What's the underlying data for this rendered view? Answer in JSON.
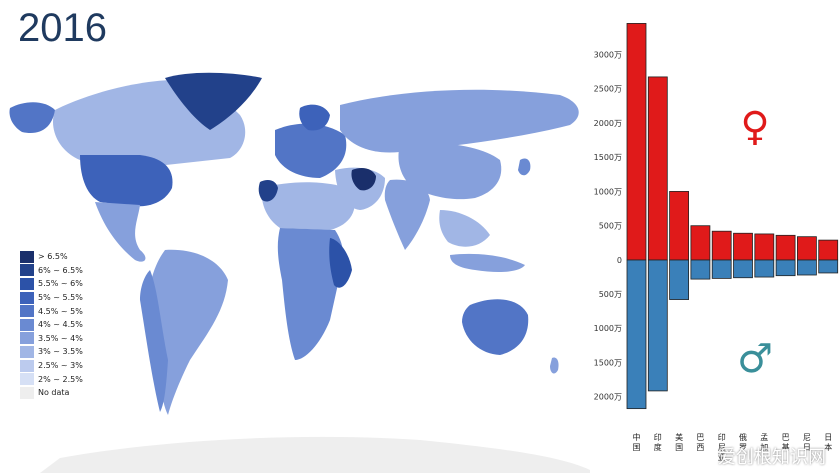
{
  "year_title": "2016",
  "legend": [
    {
      "label": "> 6.5%",
      "color": "#1a2f6b"
    },
    {
      "label": "6% ~ 6.5%",
      "color": "#22418a"
    },
    {
      "label": "5.5% ~ 6%",
      "color": "#2c52a8"
    },
    {
      "label": "5% ~ 5.5%",
      "color": "#3d62ba"
    },
    {
      "label": "4.5% ~ 5%",
      "color": "#5275c6"
    },
    {
      "label": "4% ~ 4.5%",
      "color": "#6a8ad2"
    },
    {
      "label": "3.5% ~ 4%",
      "color": "#86a0dc"
    },
    {
      "label": "3% ~ 3.5%",
      "color": "#a1b6e5"
    },
    {
      "label": "2.5% ~ 3%",
      "color": "#bccbee"
    },
    {
      "label": "2% ~ 2.5%",
      "color": "#d6e0f5"
    },
    {
      "label": "No data",
      "color": "#eeeeee"
    }
  ],
  "chart_data": {
    "type": "bar",
    "categories": [
      "中国",
      "印度",
      "美国",
      "巴西",
      "印尼亚",
      "俄罗",
      "孟加",
      "巴基",
      "尼日",
      "日本"
    ],
    "series": [
      {
        "name": "♀",
        "color": "#e01a1a",
        "values": [
          3450,
          2670,
          1000,
          500,
          420,
          390,
          380,
          360,
          340,
          290
        ]
      },
      {
        "name": "♂",
        "color": "#3a80b9",
        "values": [
          2180,
          1920,
          580,
          280,
          270,
          260,
          250,
          230,
          220,
          190
        ]
      }
    ],
    "yticks_top": [
      "3000万",
      "2500万",
      "2000万",
      "1500万",
      "1000万",
      "500万",
      "0"
    ],
    "yticks_bottom": [
      "500万",
      "1000万",
      "1500万",
      "2000万"
    ],
    "ylim_top": [
      0,
      3500
    ],
    "ylim_bottom": [
      0,
      2200
    ],
    "female_symbol": "♀",
    "male_symbol": "♂"
  },
  "watermark": "爱创根知识网"
}
